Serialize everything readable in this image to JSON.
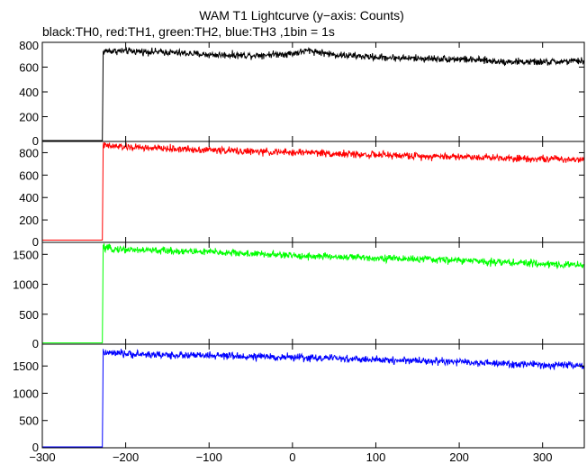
{
  "chart_data": {
    "type": "line",
    "title": "WAM T1 Lightcurve (y−axis: Counts)",
    "subtitle": "black:TH0, red:TH1, green:TH2, blue:TH3 ,1bin = 1s",
    "xlabel": "",
    "ylabel": "",
    "xlim": [
      -300,
      350
    ],
    "x_ticks": [
      -300,
      -200,
      -100,
      0,
      100,
      200,
      300
    ],
    "x_tick_labels": [
      "−300",
      "−200",
      "−100",
      "0",
      "100",
      "200",
      "300"
    ],
    "grid": false,
    "legend": "none",
    "panels": [
      {
        "color": "#000000",
        "ylim": [
          0,
          800
        ],
        "y_ticks": [
          0,
          200,
          400,
          600,
          800
        ],
        "y_tick_labels": [
          "0",
          "200",
          "400",
          "600",
          "800"
        ],
        "x": [
          -300,
          -228,
          -227,
          -225,
          -200,
          -150,
          -100,
          -50,
          0,
          20,
          50,
          100,
          150,
          200,
          250,
          300,
          350
        ],
        "y": [
          0,
          0,
          720,
          730,
          730,
          720,
          700,
          695,
          710,
          735,
          700,
          680,
          670,
          665,
          645,
          640,
          650
        ]
      },
      {
        "color": "#ff0000",
        "ylim": [
          0,
          900
        ],
        "y_ticks": [
          0,
          200,
          400,
          600,
          800
        ],
        "y_tick_labels": [
          "0",
          "200",
          "400",
          "600",
          "800"
        ],
        "x": [
          -300,
          -228,
          -227,
          -225,
          -200,
          -150,
          -100,
          -50,
          0,
          20,
          50,
          100,
          150,
          200,
          250,
          300,
          350
        ],
        "y": [
          20,
          20,
          880,
          860,
          850,
          835,
          825,
          810,
          800,
          805,
          790,
          780,
          770,
          765,
          755,
          745,
          740
        ]
      },
      {
        "color": "#00ff00",
        "ylim": [
          0,
          1700
        ],
        "y_ticks": [
          0,
          500,
          1000,
          1500
        ],
        "y_tick_labels": [
          "0",
          "500",
          "1000",
          "1500"
        ],
        "x": [
          -300,
          -228,
          -227,
          -225,
          -200,
          -150,
          -100,
          -50,
          0,
          20,
          50,
          100,
          150,
          200,
          250,
          300,
          350
        ],
        "y": [
          20,
          20,
          1620,
          1600,
          1580,
          1560,
          1540,
          1510,
          1480,
          1470,
          1460,
          1440,
          1420,
          1400,
          1370,
          1340,
          1320
        ]
      },
      {
        "color": "#0000ff",
        "ylim": [
          0,
          1900
        ],
        "y_ticks": [
          0,
          500,
          1000,
          1500
        ],
        "y_tick_labels": [
          "0",
          "500",
          "1000",
          "1500"
        ],
        "x": [
          -300,
          -228,
          -227,
          -225,
          -200,
          -150,
          -100,
          -50,
          0,
          20,
          50,
          100,
          150,
          200,
          250,
          300,
          350
        ],
        "y": [
          0,
          0,
          1750,
          1740,
          1720,
          1700,
          1690,
          1670,
          1660,
          1650,
          1640,
          1610,
          1600,
          1570,
          1540,
          1520,
          1500
        ]
      }
    ]
  }
}
